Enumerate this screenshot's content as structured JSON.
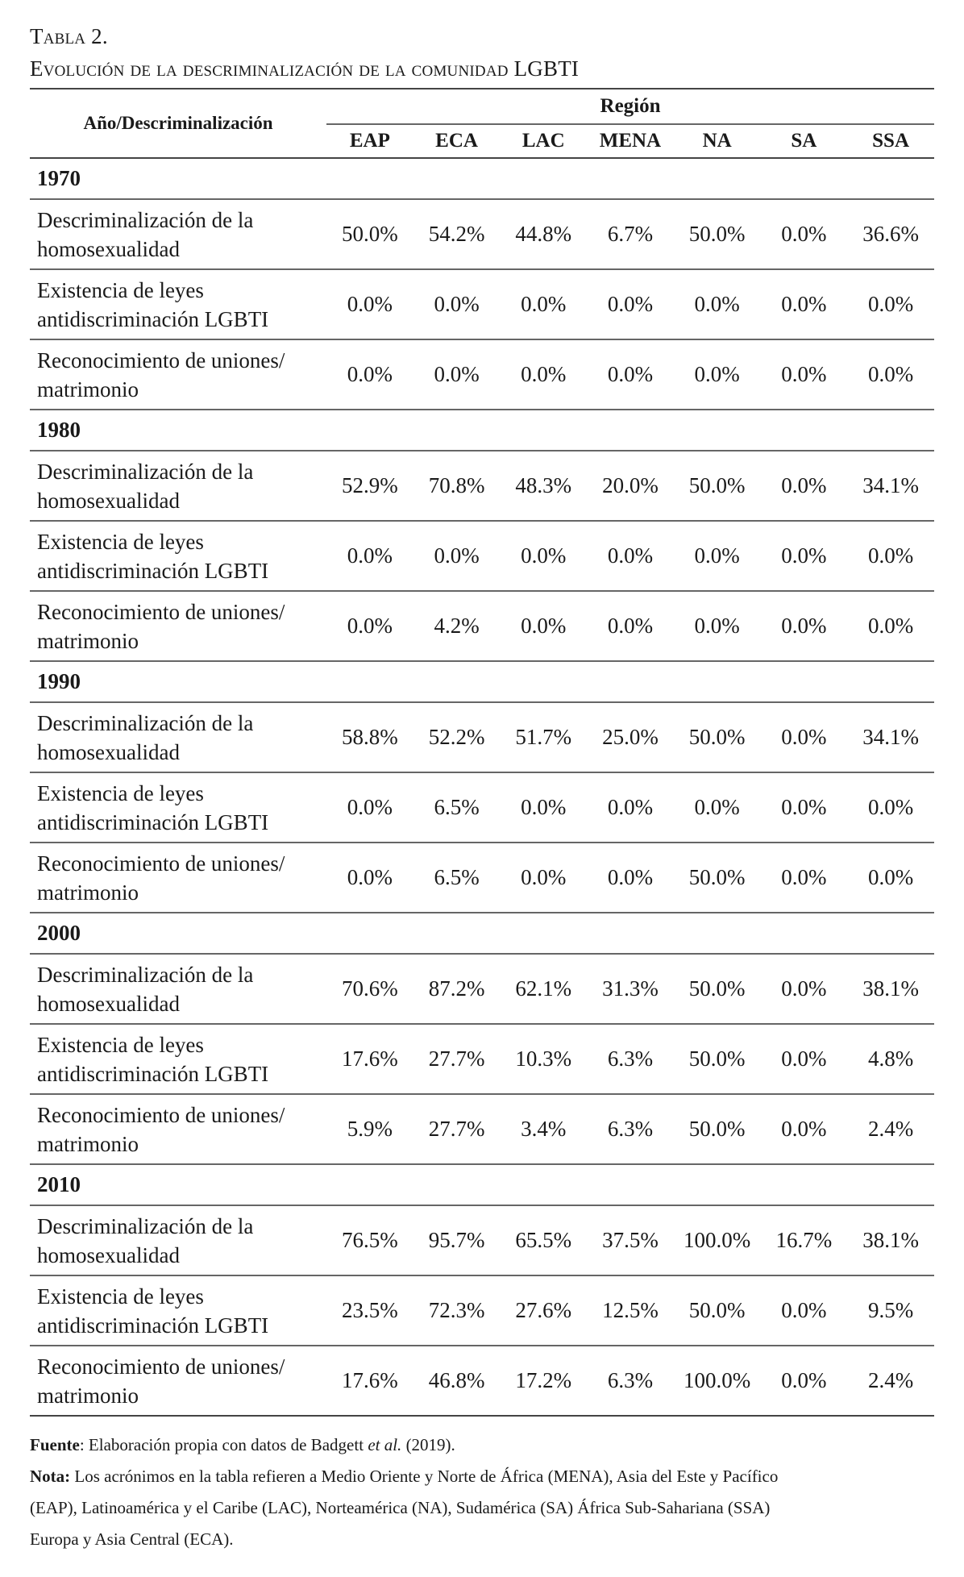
{
  "caption": {
    "number": "Tabla 2.",
    "title": "Evolución de la descriminalización de la comunidad LGBTI"
  },
  "table": {
    "row_header": "Año/Descriminalización",
    "group_header": "Región",
    "columns": [
      "EAP",
      "ECA",
      "LAC",
      "MENA",
      "NA",
      "SA",
      "SSA"
    ],
    "indicators": [
      "Descriminalización de la homosexualidad",
      "Existencia de leyes antidiscriminación LGBTI",
      "Reconocimiento de uniones/ matrimonio"
    ],
    "years": [
      {
        "year": "1970",
        "rows": [
          [
            "50.0%",
            "54.2%",
            "44.8%",
            "6.7%",
            "50.0%",
            "0.0%",
            "36.6%"
          ],
          [
            "0.0%",
            "0.0%",
            "0.0%",
            "0.0%",
            "0.0%",
            "0.0%",
            "0.0%"
          ],
          [
            "0.0%",
            "0.0%",
            "0.0%",
            "0.0%",
            "0.0%",
            "0.0%",
            "0.0%"
          ]
        ]
      },
      {
        "year": "1980",
        "rows": [
          [
            "52.9%",
            "70.8%",
            "48.3%",
            "20.0%",
            "50.0%",
            "0.0%",
            "34.1%"
          ],
          [
            "0.0%",
            "0.0%",
            "0.0%",
            "0.0%",
            "0.0%",
            "0.0%",
            "0.0%"
          ],
          [
            "0.0%",
            "4.2%",
            "0.0%",
            "0.0%",
            "0.0%",
            "0.0%",
            "0.0%"
          ]
        ]
      },
      {
        "year": "1990",
        "rows": [
          [
            "58.8%",
            "52.2%",
            "51.7%",
            "25.0%",
            "50.0%",
            "0.0%",
            "34.1%"
          ],
          [
            "0.0%",
            "6.5%",
            "0.0%",
            "0.0%",
            "0.0%",
            "0.0%",
            "0.0%"
          ],
          [
            "0.0%",
            "6.5%",
            "0.0%",
            "0.0%",
            "50.0%",
            "0.0%",
            "0.0%"
          ]
        ]
      },
      {
        "year": "2000",
        "rows": [
          [
            "70.6%",
            "87.2%",
            "62.1%",
            "31.3%",
            "50.0%",
            "0.0%",
            "38.1%"
          ],
          [
            "17.6%",
            "27.7%",
            "10.3%",
            "6.3%",
            "50.0%",
            "0.0%",
            "4.8%"
          ],
          [
            "5.9%",
            "27.7%",
            "3.4%",
            "6.3%",
            "50.0%",
            "0.0%",
            "2.4%"
          ]
        ]
      },
      {
        "year": "2010",
        "rows": [
          [
            "76.5%",
            "95.7%",
            "65.5%",
            "37.5%",
            "100.0%",
            "16.7%",
            "38.1%"
          ],
          [
            "23.5%",
            "72.3%",
            "27.6%",
            "12.5%",
            "50.0%",
            "0.0%",
            "9.5%"
          ],
          [
            "17.6%",
            "46.8%",
            "17.2%",
            "6.3%",
            "100.0%",
            "0.0%",
            "2.4%"
          ]
        ]
      }
    ]
  },
  "footer": {
    "source_label": "Fuente",
    "source_text_before": ": Elaboración propia con datos de Badgett ",
    "source_italic": "et al.",
    "source_text_after": " (2019).",
    "note_label": "Nota:",
    "note_text": " Los acrónimos en la tabla refieren a Medio Oriente y Norte de África (MENA), Asia del Este y Pacífico (EAP), Latinoamérica y el Caribe (LAC), Norteamérica (NA), Sudamérica (SA) África Sub-Sahariana (SSA) Europa y Asia Central (ECA)."
  }
}
